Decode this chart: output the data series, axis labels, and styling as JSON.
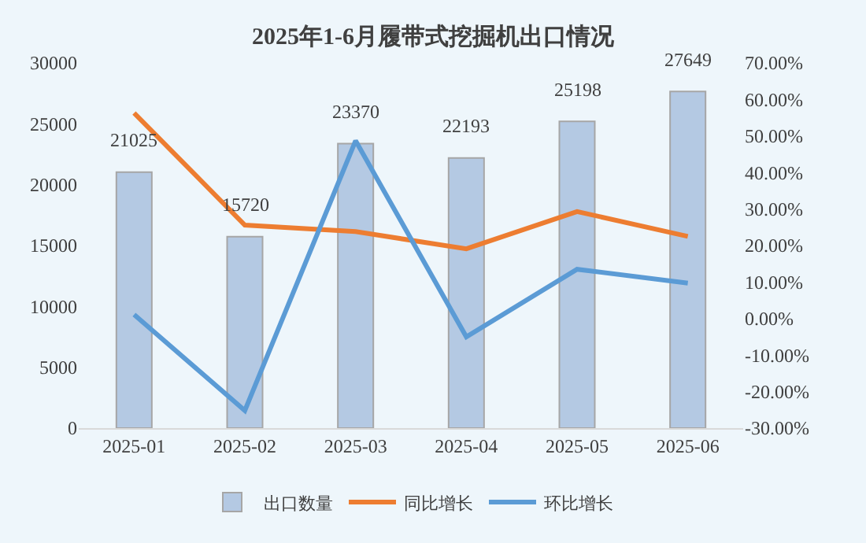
{
  "chart_data": {
    "type": "bar",
    "title": "2025年1-6月履带式挖掘机出口情况",
    "categories": [
      "2025-01",
      "2025-02",
      "2025-03",
      "2025-04",
      "2025-05",
      "2025-06"
    ],
    "series": [
      {
        "name": "出口数量",
        "color": "#b4c9e3",
        "values": [
          21025,
          15720,
          23370,
          22193,
          25198,
          27649
        ],
        "value_labels": [
          "21025",
          "15720",
          "23370",
          "22193",
          "25198",
          "27649"
        ]
      },
      {
        "name": "同比增长",
        "type": "line",
        "axis": "y2",
        "color": "#ed7d31",
        "values": [
          56.3,
          25.6,
          23.8,
          19.1,
          29.3,
          22.5
        ]
      },
      {
        "name": "环比增长",
        "type": "line",
        "axis": "y2",
        "color": "#5b9bd5",
        "values": [
          1.1,
          -25.2,
          48.7,
          -5.0,
          13.5,
          9.7
        ]
      }
    ],
    "ylim": [
      0,
      30000
    ],
    "yticks": [
      0,
      5000,
      10000,
      15000,
      20000,
      25000,
      30000
    ],
    "y2lim": [
      -30,
      70
    ],
    "y2ticks": [
      {
        "value": -30,
        "label": "-30.00%"
      },
      {
        "value": -20,
        "label": "-20.00%"
      },
      {
        "value": -10,
        "label": "-10.00%"
      },
      {
        "value": 0,
        "label": "0.00%"
      },
      {
        "value": 10,
        "label": "10.00%"
      },
      {
        "value": 20,
        "label": "20.00%"
      },
      {
        "value": 30,
        "label": "30.00%"
      },
      {
        "value": 40,
        "label": "40.00%"
      },
      {
        "value": 50,
        "label": "50.00%"
      },
      {
        "value": 60,
        "label": "60.00%"
      },
      {
        "value": 70,
        "label": "70.00%"
      }
    ],
    "grid": false,
    "legend": "bottom",
    "marker": "none",
    "line_style": "solid"
  }
}
